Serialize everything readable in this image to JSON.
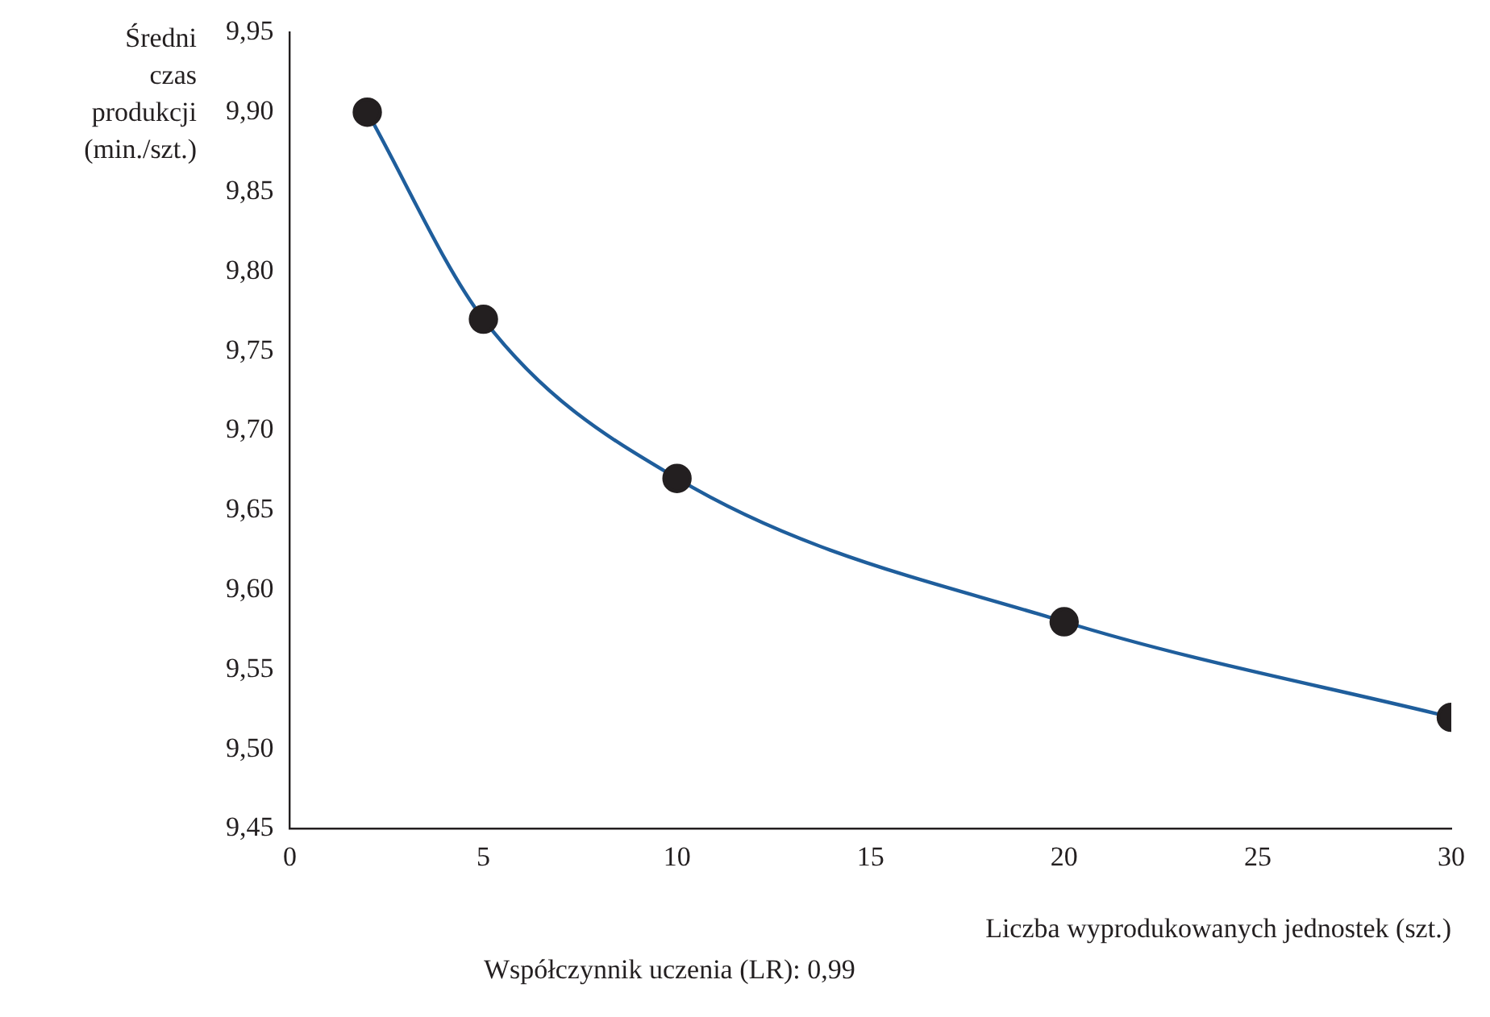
{
  "chart_data": {
    "type": "line",
    "ylabel": "Średni czas produkcji (min./szt.)",
    "xlabel": "Liczba wyprodukowanych jednostek (szt.)",
    "annotations": [
      "Współczynnik uczenia (LR): 0,99"
    ],
    "x": [
      2,
      5,
      10,
      20,
      30
    ],
    "series": [
      {
        "color": "#1f5e9c",
        "colors": [
          "#231f20",
          "#231f20",
          "#231f20",
          "#231f20",
          "#231f20"
        ],
        "values": [
          9.9,
          9.77,
          9.67,
          9.58,
          9.52
        ]
      }
    ],
    "xlim": [
      0,
      30
    ],
    "xticks": [
      0,
      5,
      10,
      15,
      20,
      25,
      30
    ],
    "ylim": [
      9.45,
      9.95
    ],
    "yticks": [
      {
        "value": 9.45,
        "label": "9,45"
      },
      {
        "value": 9.5,
        "label": "9,50"
      },
      {
        "value": 9.55,
        "label": "9,55"
      },
      {
        "value": 9.6,
        "label": "9,60"
      },
      {
        "value": 9.65,
        "label": "9,65"
      },
      {
        "value": 9.7,
        "label": "9,70"
      },
      {
        "value": 9.75,
        "label": "9,75"
      },
      {
        "value": 9.8,
        "label": "9,80"
      },
      {
        "value": 9.85,
        "label": "9,85"
      },
      {
        "value": 9.9,
        "label": "9,90"
      },
      {
        "value": 9.95,
        "label": "9,95"
      }
    ],
    "grid": false,
    "legend": false,
    "marker": "circle",
    "line_style": "solid"
  }
}
